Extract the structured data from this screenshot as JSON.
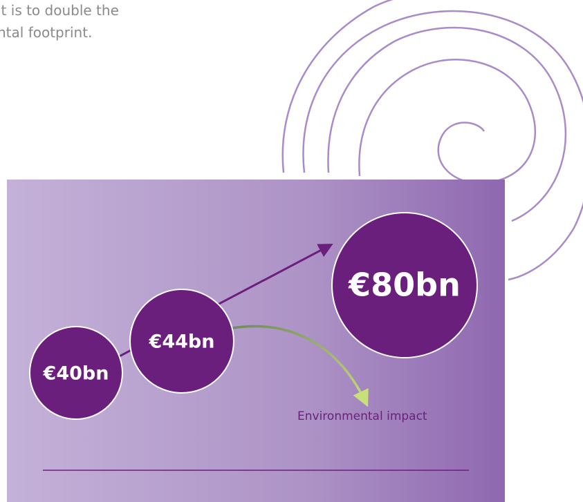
{
  "intro": {
    "lines": [
      "lt is to double the",
      "ntal footprint."
    ]
  },
  "circles": [
    {
      "label": "€40bn"
    },
    {
      "label": "€44bn"
    },
    {
      "label": "€80bn"
    }
  ],
  "impact": {
    "label": "Environmental impact"
  }
}
